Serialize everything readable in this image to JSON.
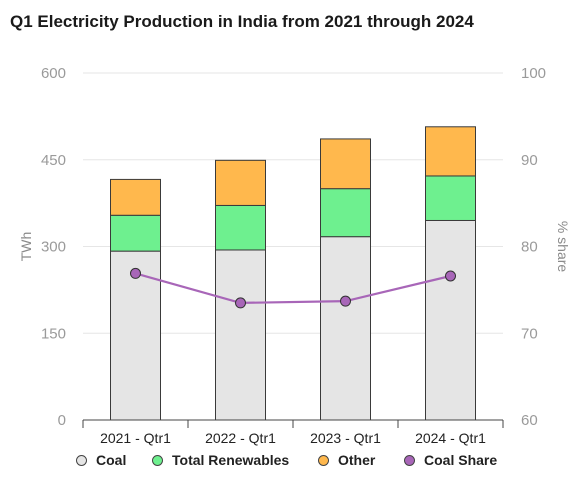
{
  "chart_data": {
    "type": "bar",
    "stacked": true,
    "title": "Q1 Electricity Production in India from 2021 through 2024",
    "categories": [
      "2021 - Qtr1",
      "2022 - Qtr1",
      "2023 - Qtr1",
      "2024 - Qtr1"
    ],
    "ylabel": "TWh",
    "ylim": [
      0,
      600
    ],
    "yticks": [
      "0",
      "150",
      "300",
      "450",
      "600"
    ],
    "y2label": "% share",
    "y2lim": [
      60,
      100
    ],
    "y2ticks": [
      "60",
      "70",
      "80",
      "90",
      "100"
    ],
    "grid": true,
    "legend_position": "bottom",
    "series": [
      {
        "name": "Coal",
        "type": "bar",
        "color": "#e5e5e5",
        "values": [
          292,
          294,
          317,
          345
        ]
      },
      {
        "name": "Total Renewables",
        "type": "bar",
        "color": "#6ef08f",
        "values": [
          62,
          77,
          83,
          77
        ]
      },
      {
        "name": "Other",
        "type": "bar",
        "color": "#ffb84d",
        "values": [
          62,
          78,
          86,
          85
        ]
      },
      {
        "name": "Coal Share",
        "type": "line",
        "axis": "secondary",
        "color": "#a866b8",
        "values": [
          76.9,
          73.5,
          73.7,
          76.6
        ]
      }
    ]
  }
}
